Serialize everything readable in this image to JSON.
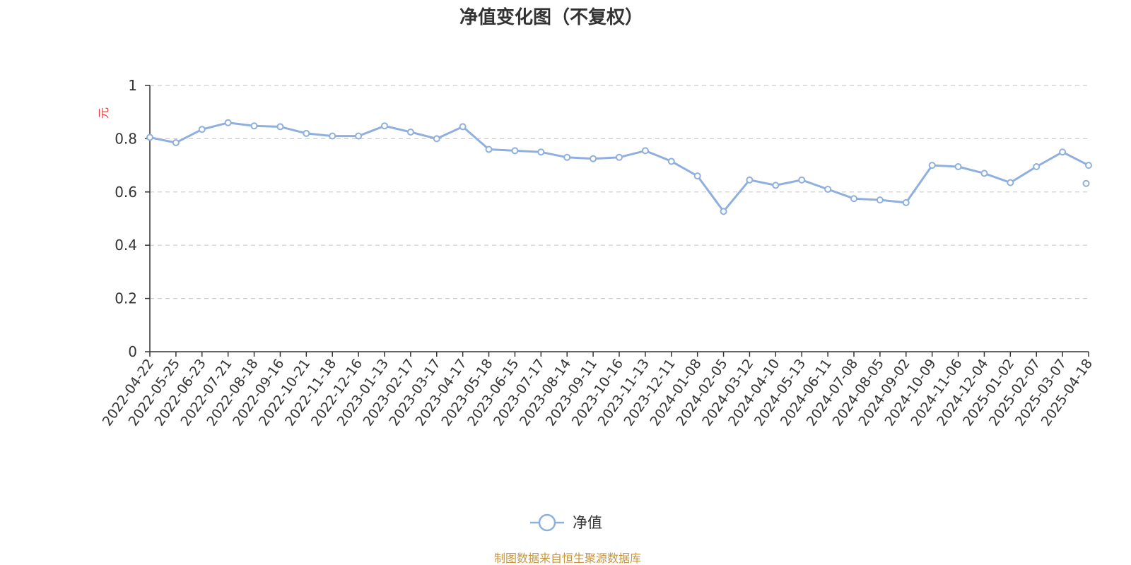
{
  "chart_data": {
    "type": "line",
    "title": "净值变化图（不复权）",
    "ylabel": "元",
    "ylim": [
      0,
      1
    ],
    "yticks": [
      "0",
      "0.2",
      "0.4",
      "0.6",
      "0.8",
      "1"
    ],
    "grid": true,
    "legend_position": "bottom-center",
    "categories": [
      "2022-04-22",
      "2022-05-25",
      "2022-06-23",
      "2022-07-21",
      "2022-08-18",
      "2022-09-16",
      "2022-10-21",
      "2022-11-18",
      "2022-12-16",
      "2023-01-13",
      "2023-02-17",
      "2023-03-17",
      "2023-04-17",
      "2023-05-18",
      "2023-06-15",
      "2023-07-17",
      "2023-08-14",
      "2023-09-11",
      "2023-10-16",
      "2023-11-13",
      "2023-12-11",
      "2024-01-08",
      "2024-02-05",
      "2024-03-12",
      "2024-04-10",
      "2024-05-13",
      "2024-06-11",
      "2024-07-08",
      "2024-08-05",
      "2024-09-02",
      "2024-10-09",
      "2024-11-06",
      "2024-12-04",
      "2025-01-02",
      "2025-02-07",
      "2025-03-07",
      "2025-04-18"
    ],
    "series": [
      {
        "name": "净值",
        "color": "#8fb0de",
        "values": [
          0.805,
          0.785,
          0.835,
          0.86,
          0.848,
          0.845,
          0.82,
          0.81,
          0.81,
          0.848,
          0.825,
          0.8,
          0.845,
          0.76,
          0.755,
          0.75,
          0.73,
          0.725,
          0.73,
          0.755,
          0.715,
          0.66,
          0.527,
          0.645,
          0.625,
          0.645,
          0.61,
          0.575,
          0.57,
          0.56,
          0.7,
          0.695,
          0.67,
          0.635,
          0.695,
          0.75,
          0.7
        ],
        "extra_points": [
          {
            "x": "2025-04-14",
            "y": 0.632
          }
        ]
      }
    ]
  },
  "legend": {
    "label": "净值"
  },
  "footer": {
    "source": "制图数据来自恒生聚源数据库",
    "color": "#c8963e"
  },
  "colors": {
    "axis": "#333333",
    "grid": "#cccccc",
    "unit": "#e83c3c",
    "line": "#8fb0de"
  }
}
